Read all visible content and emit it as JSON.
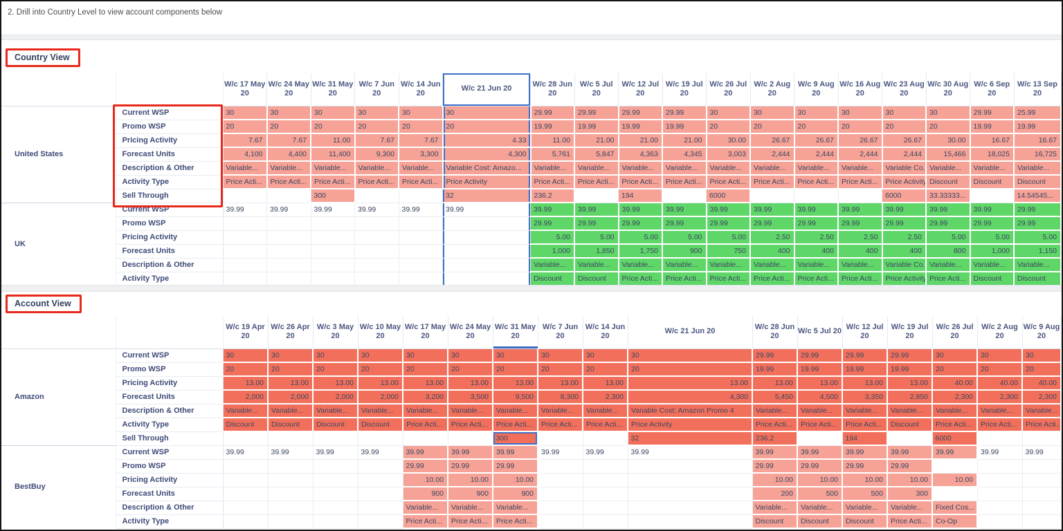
{
  "instruction": "2. Drill into Country Level to view account components below",
  "colors": {
    "salmon_fill": "#F6A296",
    "green_fill": "#5ED668",
    "orange_fill": "#F2705B",
    "selection_blue": "#3D6FC6",
    "annotation_red": "#E8281A"
  },
  "country_view": {
    "title": "Country View",
    "wide_column": "W/c 21 Jun 20",
    "selected_column": "W/c 21 Jun 20",
    "columns": [
      "W/c 17 May 20",
      "W/c 24 May 20",
      "W/c 31 May 20",
      "W/c 7 Jun 20",
      "W/c 14 Jun 20",
      "W/c 21 Jun 20",
      "W/c 28 Jun 20",
      "W/c 5 Jul 20",
      "W/c 12 Jul 20",
      "W/c 19 Jul 20",
      "W/c 26 Jul 20",
      "W/c 2 Aug 20",
      "W/c 9 Aug 20",
      "W/c 16 Aug 20",
      "W/c 23 Aug 20",
      "W/c 30 Aug 20",
      "W/c 6 Sep 20",
      "W/c 13 Sep 20"
    ],
    "regions": [
      {
        "name": "United States",
        "fill": "#F6A296",
        "rows": [
          {
            "label": "Current WSP",
            "values": [
              "30",
              "30",
              "30",
              "30",
              "30",
              "30",
              "29.99",
              "29.99",
              "29.99",
              "29.99",
              "30",
              "30",
              "30",
              "30",
              "30",
              "30",
              "29.99",
              "25.99"
            ]
          },
          {
            "label": "Promo WSP",
            "values": [
              "20",
              "20",
              "20",
              "20",
              "20",
              "20",
              "19.99",
              "19.99",
              "19.99",
              "19.99",
              "20",
              "20",
              "20",
              "20",
              "20",
              "20",
              "19.99",
              "19.99"
            ]
          },
          {
            "label": "Pricing Activity",
            "values": [
              "7.67",
              "7.67",
              "11.00",
              "7.67",
              "7.67",
              "4.33",
              "11.00",
              "21.00",
              "21.00",
              "21.00",
              "30.00",
              "26.67",
              "26.67",
              "26.67",
              "26.67",
              "30.00",
              "16.67",
              "16.67"
            ]
          },
          {
            "label": "Forecast Units",
            "values": [
              "4,100",
              "4,400",
              "11,400",
              "9,300",
              "3,300",
              "4,300",
              "5,761",
              "5,847",
              "4,363",
              "4,345",
              "3,003",
              "2,444",
              "2,444",
              "2,444",
              "2,444",
              "15,466",
              "18,025",
              "16,725"
            ]
          },
          {
            "label": "Description & Other",
            "values": [
              "Variable...",
              "Variable...",
              "Variable...",
              "Variable...",
              "Variable...",
              "Variable Cost: Amazo...",
              "Variable...",
              "Variable...",
              "Variable...",
              "Variable...",
              "Variable...",
              "Variable...",
              "Variable...",
              "Variable...",
              "Variable Co...",
              "Variable...",
              "Variable...",
              "Variable..."
            ]
          },
          {
            "label": "Activity Type",
            "values": [
              "Price Acti...",
              "Price Acti...",
              "Price Acti...",
              "Price Acti...",
              "Price Acti...",
              "Price Activity",
              "Price Acti...",
              "Price Acti...",
              "Price Acti...",
              "Price Acti...",
              "Price Acti...",
              "Price Acti...",
              "Price Acti...",
              "Price Acti...",
              "Price Activity",
              "Discount",
              "Discount",
              "Discount"
            ]
          },
          {
            "label": "Sell Through",
            "values": [
              "",
              "",
              "300",
              "",
              "",
              "32",
              "236.2",
              "",
              "194",
              "",
              "6000",
              "",
              "",
              "",
              "6000",
              "33.33333...",
              "",
              "14.54545..."
            ]
          }
        ]
      },
      {
        "name": "UK",
        "fill": "#5ED668",
        "rows": [
          {
            "label": "Current WSP",
            "values": [
              "39.99",
              "39.99",
              "39.99",
              "39.99",
              "39.99",
              "39.99",
              "39.99",
              "39.99",
              "39.99",
              "39.99",
              "39.99",
              "39.99",
              "39.99",
              "39.99",
              "39.99",
              "39.99",
              "39.99",
              "29.99"
            ],
            "filled": [
              0,
              0,
              0,
              0,
              0,
              0,
              1,
              1,
              1,
              1,
              1,
              1,
              1,
              1,
              1,
              1,
              1,
              1
            ]
          },
          {
            "label": "Promo WSP",
            "values": [
              "",
              "",
              "",
              "",
              "",
              "",
              "29.99",
              "29.99",
              "29.99",
              "29.99",
              "29.99",
              "29.99",
              "29.99",
              "29.99",
              "29.99",
              "29.99",
              "29.99",
              "29.99"
            ]
          },
          {
            "label": "Pricing Activity",
            "values": [
              "",
              "",
              "",
              "",
              "",
              "",
              "5.00",
              "5.00",
              "5.00",
              "5.00",
              "5.00",
              "2.50",
              "2.50",
              "2.50",
              "2.50",
              "5.00",
              "5.00",
              "5.00"
            ]
          },
          {
            "label": "Forecast Units",
            "values": [
              "",
              "",
              "",
              "",
              "",
              "",
              "1,000",
              "1,850",
              "1,750",
              "900",
              "750",
              "400",
              "400",
              "400",
              "400",
              "800",
              "1,000",
              "1,150"
            ]
          },
          {
            "label": "Description & Other",
            "values": [
              "",
              "",
              "",
              "",
              "",
              "",
              "Variable...",
              "Variable...",
              "Variable...",
              "Variable...",
              "Variable...",
              "Variable...",
              "Variable...",
              "Variable...",
              "Variable Co...",
              "Variable...",
              "Variable...",
              "Variable..."
            ]
          },
          {
            "label": "Activity Type",
            "values": [
              "",
              "",
              "",
              "",
              "",
              "",
              "Discount",
              "Discount",
              "Price Acti...",
              "Price Acti...",
              "Price Acti...",
              "Price Acti...",
              "Price Acti...",
              "Price Acti...",
              "Price Activity",
              "Price Acti...",
              "Discount",
              "Discount"
            ]
          }
        ]
      }
    ]
  },
  "account_view": {
    "title": "Account View",
    "wide_column": "W/c 21 Jun 20",
    "underlined_column": "W/c 31 May 20",
    "selected_cell": {
      "region": "Amazon",
      "row": "Sell Through",
      "column": "W/c 31 May 20"
    },
    "columns": [
      "W/c 19 Apr 20",
      "W/c 26 Apr 20",
      "W/c 3 May 20",
      "W/c 10 May 20",
      "W/c 17 May 20",
      "W/c 24 May 20",
      "W/c 31 May 20",
      "W/c 7 Jun 20",
      "W/c 14 Jun 20",
      "W/c 21 Jun 20",
      "W/c 28 Jun 20",
      "W/c 5 Jul 20",
      "W/c 12 Jul 20",
      "W/c 19 Jul 20",
      "W/c 26 Jul 20",
      "W/c 2 Aug 20",
      "W/c 9 Aug 20"
    ],
    "regions": [
      {
        "name": "Amazon",
        "fill": "#F2705B",
        "rows": [
          {
            "label": "Current WSP",
            "values": [
              "30",
              "30",
              "30",
              "30",
              "30",
              "30",
              "30",
              "30",
              "30",
              "30",
              "29.99",
              "29.99",
              "29.99",
              "29.99",
              "30",
              "30",
              "30"
            ]
          },
          {
            "label": "Promo WSP",
            "values": [
              "20",
              "20",
              "20",
              "20",
              "20",
              "20",
              "20",
              "20",
              "20",
              "20",
              "19.99",
              "19.99",
              "19.99",
              "19.99",
              "20",
              "20",
              "20"
            ]
          },
          {
            "label": "Pricing Activity",
            "values": [
              "13.00",
              "13.00",
              "13.00",
              "13.00",
              "13.00",
              "13.00",
              "13.00",
              "13.00",
              "13.00",
              "13.00",
              "13.00",
              "13.00",
              "13.00",
              "13.00",
              "40.00",
              "40.00",
              "40.00"
            ]
          },
          {
            "label": "Forecast Units",
            "values": [
              "2,000",
              "2,000",
              "2,000",
              "2,000",
              "3,200",
              "3,500",
              "9,500",
              "8,300",
              "2,300",
              "4,300",
              "5,450",
              "4,500",
              "3,350",
              "2,850",
              "2,300",
              "2,300",
              "2,300"
            ]
          },
          {
            "label": "Description & Other",
            "values": [
              "Variable...",
              "Variable...",
              "Variable...",
              "Variable...",
              "Variable...",
              "Variable...",
              "Variable...",
              "Variable...",
              "Variable...",
              "Variable Cost: Amazon Promo 4",
              "Variable...",
              "Variable...",
              "Variable...",
              "Variable...",
              "Variable...",
              "Variable...",
              "Variable..."
            ]
          },
          {
            "label": "Activity Type",
            "values": [
              "Discount",
              "Discount",
              "Discount",
              "Discount",
              "Price Acti...",
              "Price Acti...",
              "Price Acti...",
              "Price Acti...",
              "Price Acti...",
              "Price Activity",
              "Price Acti...",
              "Price Acti...",
              "Price Acti...",
              "Discount",
              "Price Acti...",
              "Price Acti...",
              "Price Acti..."
            ]
          },
          {
            "label": "Sell Through",
            "values": [
              "",
              "",
              "",
              "",
              "",
              "",
              "300",
              "",
              "",
              "32",
              "236.2",
              "",
              "194",
              "",
              "6000",
              "",
              ""
            ]
          }
        ]
      },
      {
        "name": "BestBuy",
        "fill": "#F6A296",
        "rows": [
          {
            "label": "Current WSP",
            "values": [
              "39.99",
              "39.99",
              "39.99",
              "39.99",
              "39.99",
              "39.99",
              "39.99",
              "39.99",
              "39.99",
              "39.99",
              "39.99",
              "39.99",
              "39.99",
              "39.99",
              "39.99",
              "39.99",
              "39.99"
            ],
            "filled": [
              0,
              0,
              0,
              0,
              1,
              1,
              1,
              0,
              0,
              0,
              1,
              1,
              1,
              1,
              1,
              0,
              0
            ]
          },
          {
            "label": "Promo WSP",
            "values": [
              "",
              "",
              "",
              "",
              "29.99",
              "29.99",
              "29.99",
              "",
              "",
              "",
              "29.99",
              "29.99",
              "29.99",
              "29.99",
              "",
              "",
              ""
            ]
          },
          {
            "label": "Pricing Activity",
            "values": [
              "",
              "",
              "",
              "",
              "10.00",
              "10.00",
              "10.00",
              "",
              "",
              "",
              "10.00",
              "10.00",
              "10.00",
              "10.00",
              "10.00",
              "",
              ""
            ]
          },
          {
            "label": "Forecast Units",
            "values": [
              "",
              "",
              "",
              "",
              "900",
              "900",
              "900",
              "",
              "",
              "",
              "200",
              "500",
              "500",
              "300",
              "",
              "",
              ""
            ]
          },
          {
            "label": "Description & Other",
            "values": [
              "",
              "",
              "",
              "",
              "Variable...",
              "Variable...",
              "Variable...",
              "",
              "",
              "",
              "Variable...",
              "Variable...",
              "Variable...",
              "Variable...",
              "Fixed Cos...",
              "",
              ""
            ]
          },
          {
            "label": "Activity Type",
            "values": [
              "",
              "",
              "",
              "",
              "Price Acti...",
              "Price Acti...",
              "Price Acti...",
              "",
              "",
              "",
              "Discount",
              "Discount",
              "Discount",
              "Price Acti...",
              "Co-Op",
              "",
              ""
            ]
          }
        ]
      }
    ]
  }
}
